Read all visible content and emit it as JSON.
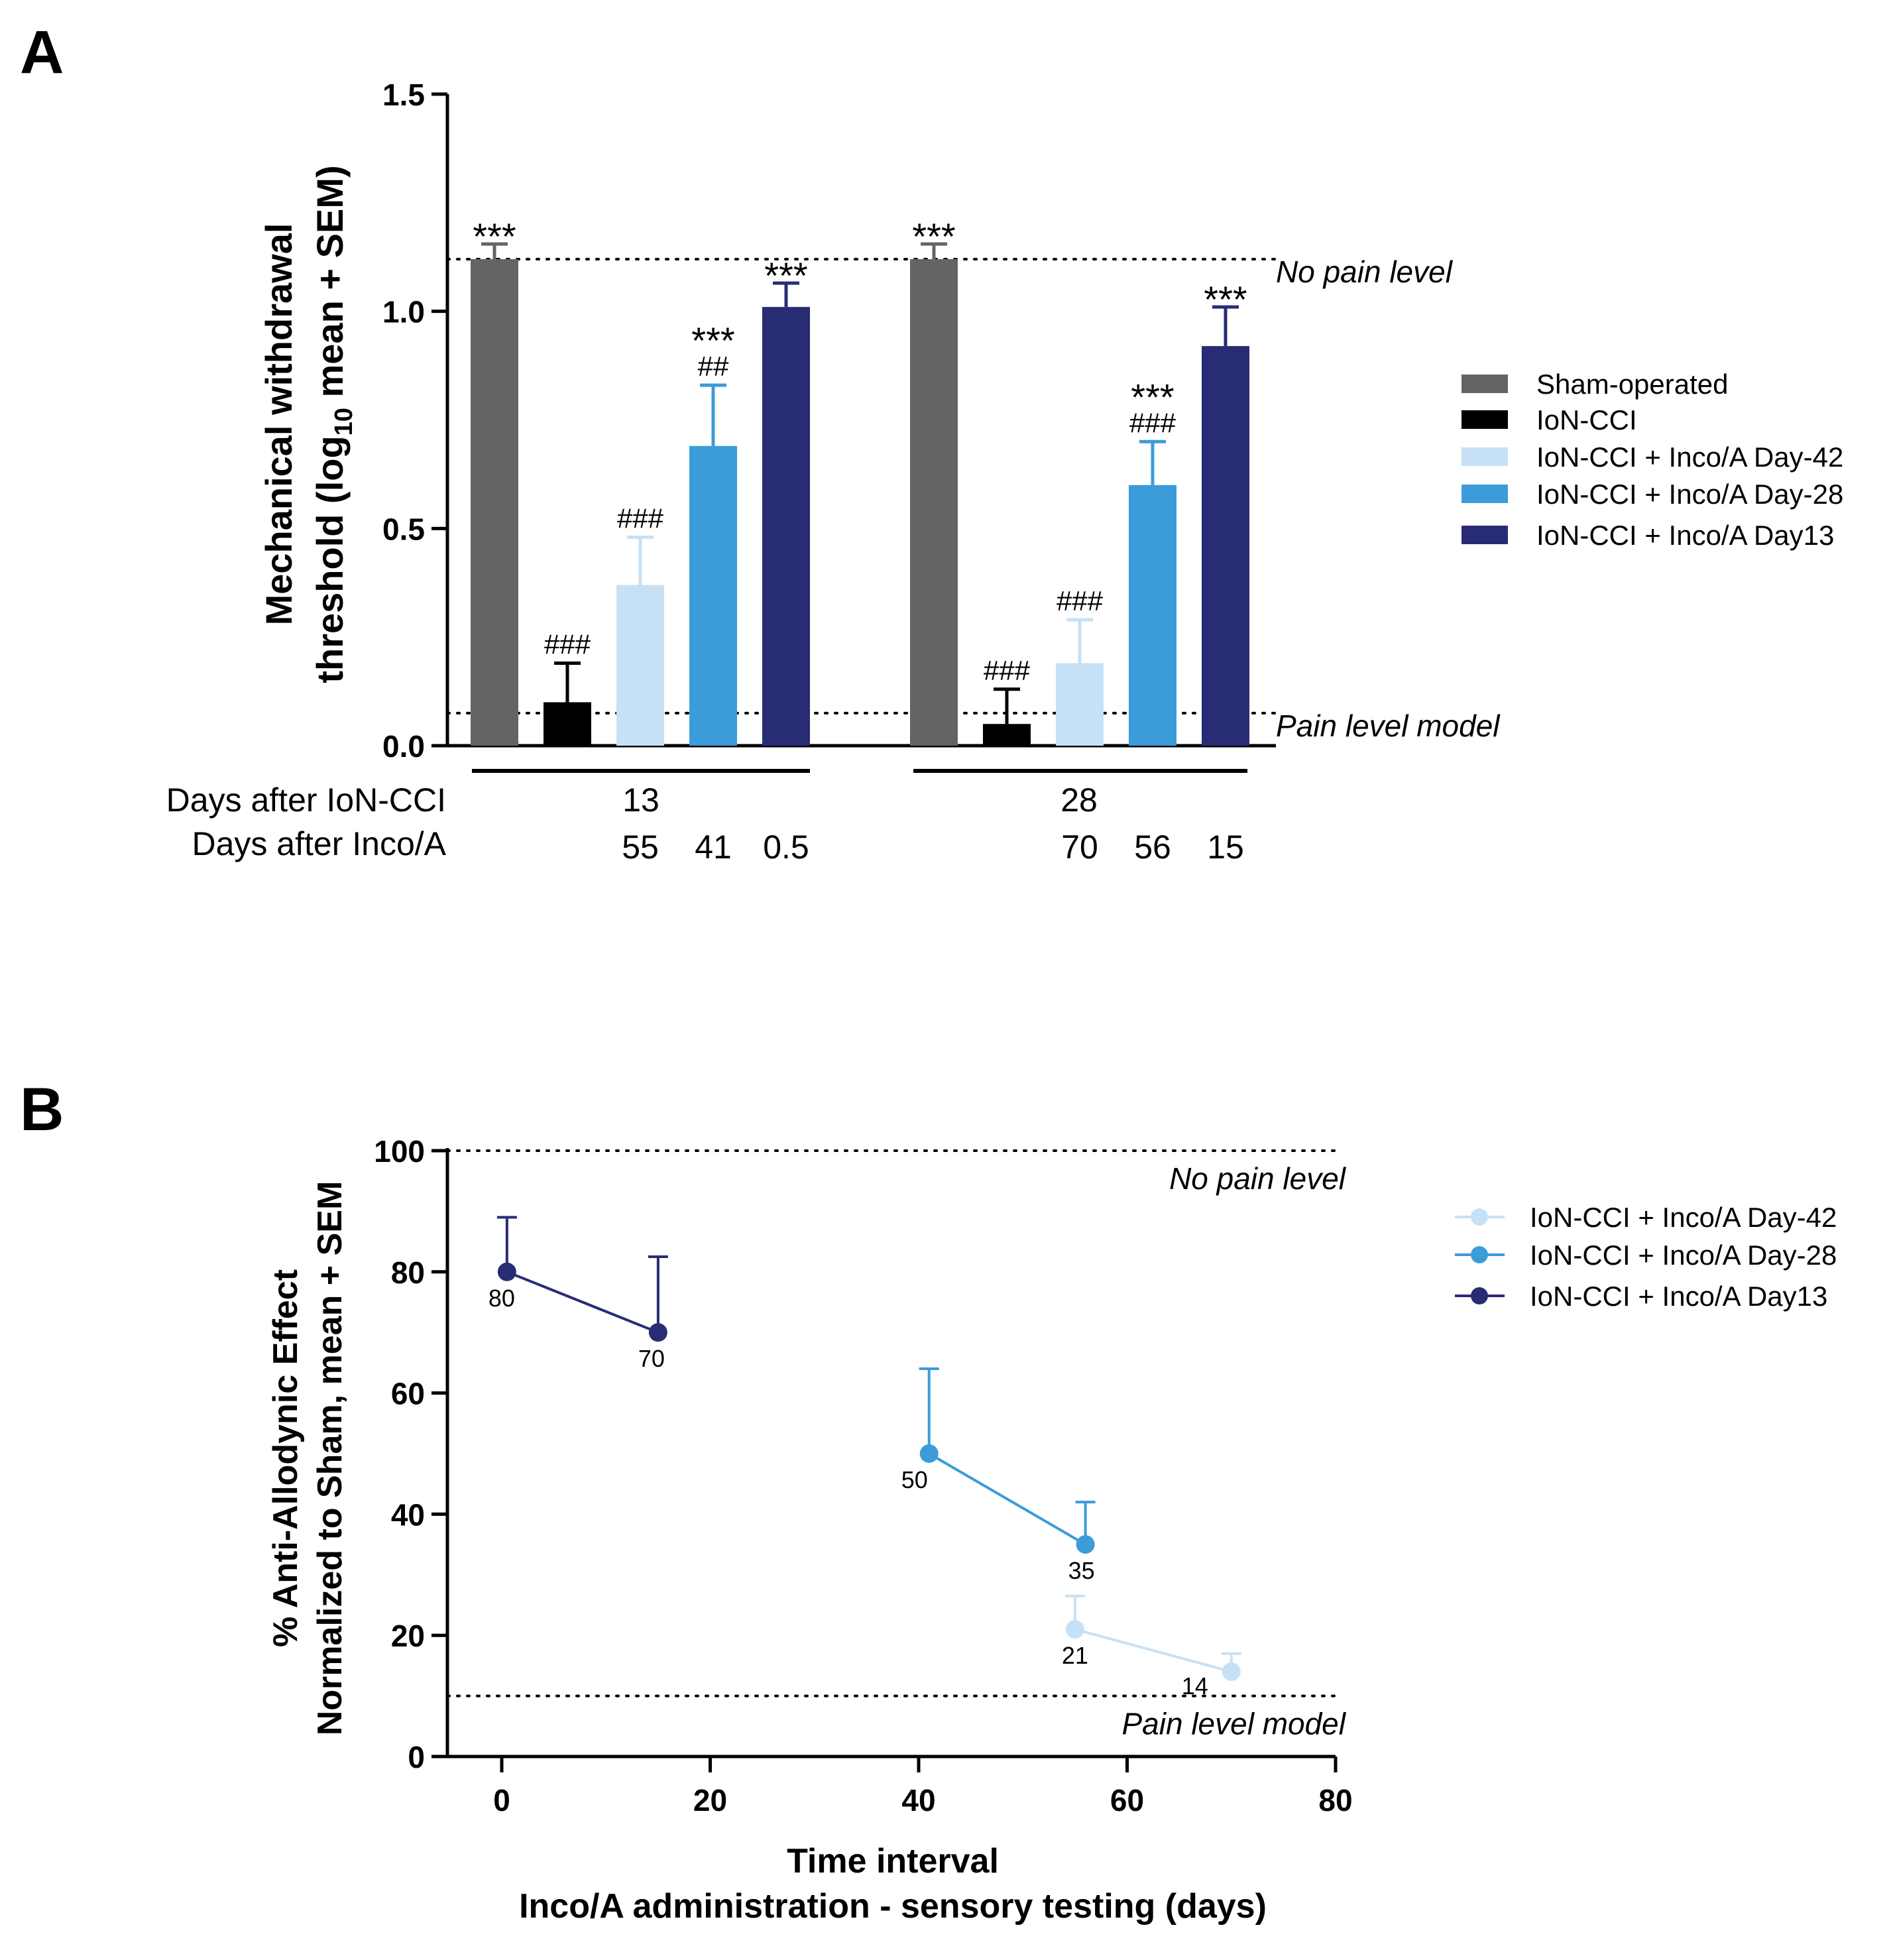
{
  "chart_data": [
    {
      "panel": "A",
      "type": "bar",
      "ylabel_line1": "Mechanical withdrawal",
      "ylabel_line2_pre": "threshold (log",
      "ylabel_line2_sub": "10",
      "ylabel_line2_post": " mean + SEM)",
      "ylim": [
        0,
        1.5
      ],
      "yticks": [
        "0.0",
        "0.5",
        "1.0",
        "1.5"
      ],
      "series": [
        {
          "name": "Sham-operated",
          "color": "#646464",
          "values": [
            1.12,
            1.12
          ],
          "sem": [
            0.035,
            0.035
          ],
          "sig": [
            [
              "***"
            ],
            [
              "***"
            ]
          ]
        },
        {
          "name": "IoN-CCI",
          "color": "#000000",
          "values": [
            0.1,
            0.05
          ],
          "sem": [
            0.09,
            0.08
          ],
          "sig": [
            [
              "###"
            ],
            [
              "###"
            ]
          ]
        },
        {
          "name": "IoN-CCI + Inco/A Day-42",
          "color": "#c6e1f6",
          "values": [
            0.37,
            0.19
          ],
          "sem": [
            0.11,
            0.1
          ],
          "sig": [
            [
              "###"
            ],
            [
              "###"
            ]
          ]
        },
        {
          "name": "IoN-CCI + Inco/A Day-28",
          "color": "#3b9cd9",
          "values": [
            0.69,
            0.6
          ],
          "sem": [
            0.14,
            0.1
          ],
          "sig": [
            [
              "***",
              "##"
            ],
            [
              "***",
              "###"
            ]
          ]
        },
        {
          "name": "IoN-CCI + Inco/A Day13",
          "color": "#282c74",
          "values": [
            1.01,
            0.92
          ],
          "sem": [
            0.055,
            0.09
          ],
          "sig": [
            [
              "***"
            ],
            [
              "***"
            ]
          ]
        }
      ],
      "reference_lines": [
        {
          "label": "No pain level",
          "y": 1.12
        },
        {
          "label": "Pain level model",
          "y": 0.075
        }
      ],
      "row_labels": [
        "Days after IoN-CCI",
        "Days after Inco/A"
      ],
      "group_days_ion": [
        "13",
        "28"
      ],
      "group_days_inco": [
        [
          "55",
          "41",
          "0.5"
        ],
        [
          "70",
          "56",
          "15"
        ]
      ],
      "legend_position": "right"
    },
    {
      "panel": "B",
      "type": "line",
      "ylabel_line1": "% Anti-Allodynic Effect",
      "ylabel_line2": "Normalized to Sham, mean + SEM",
      "xlabel_line1": "Time interval",
      "xlabel_line2": "Inco/A administration - sensory testing (days)",
      "xlim": [
        -6,
        80
      ],
      "ylim": [
        0,
        100
      ],
      "xticks": [
        "0",
        "20",
        "40",
        "60",
        "80"
      ],
      "yticks": [
        "0",
        "20",
        "40",
        "60",
        "80",
        "100"
      ],
      "series": [
        {
          "name": "IoN-CCI + Inco/A Day-42",
          "color": "#c6e1f6",
          "x": [
            55,
            70
          ],
          "y": [
            21,
            14
          ],
          "sem": [
            5.5,
            3
          ],
          "labels": [
            "21",
            "14"
          ]
        },
        {
          "name": "IoN-CCI + Inco/A Day-28",
          "color": "#3b9cd9",
          "x": [
            41,
            56
          ],
          "y": [
            50,
            35
          ],
          "sem": [
            14,
            7
          ],
          "labels": [
            "50",
            "35"
          ]
        },
        {
          "name": "IoN-CCI + Inco/A Day13",
          "color": "#282c74",
          "x": [
            0.5,
            15
          ],
          "y": [
            80,
            70
          ],
          "sem": [
            9,
            12.5
          ],
          "labels": [
            "80",
            "70"
          ]
        }
      ],
      "reference_lines": [
        {
          "label": "No pain level",
          "y": 100
        },
        {
          "label": "Pain level model",
          "y": 10
        }
      ],
      "legend_position": "right"
    }
  ],
  "panel_letters": [
    "A",
    "B"
  ]
}
